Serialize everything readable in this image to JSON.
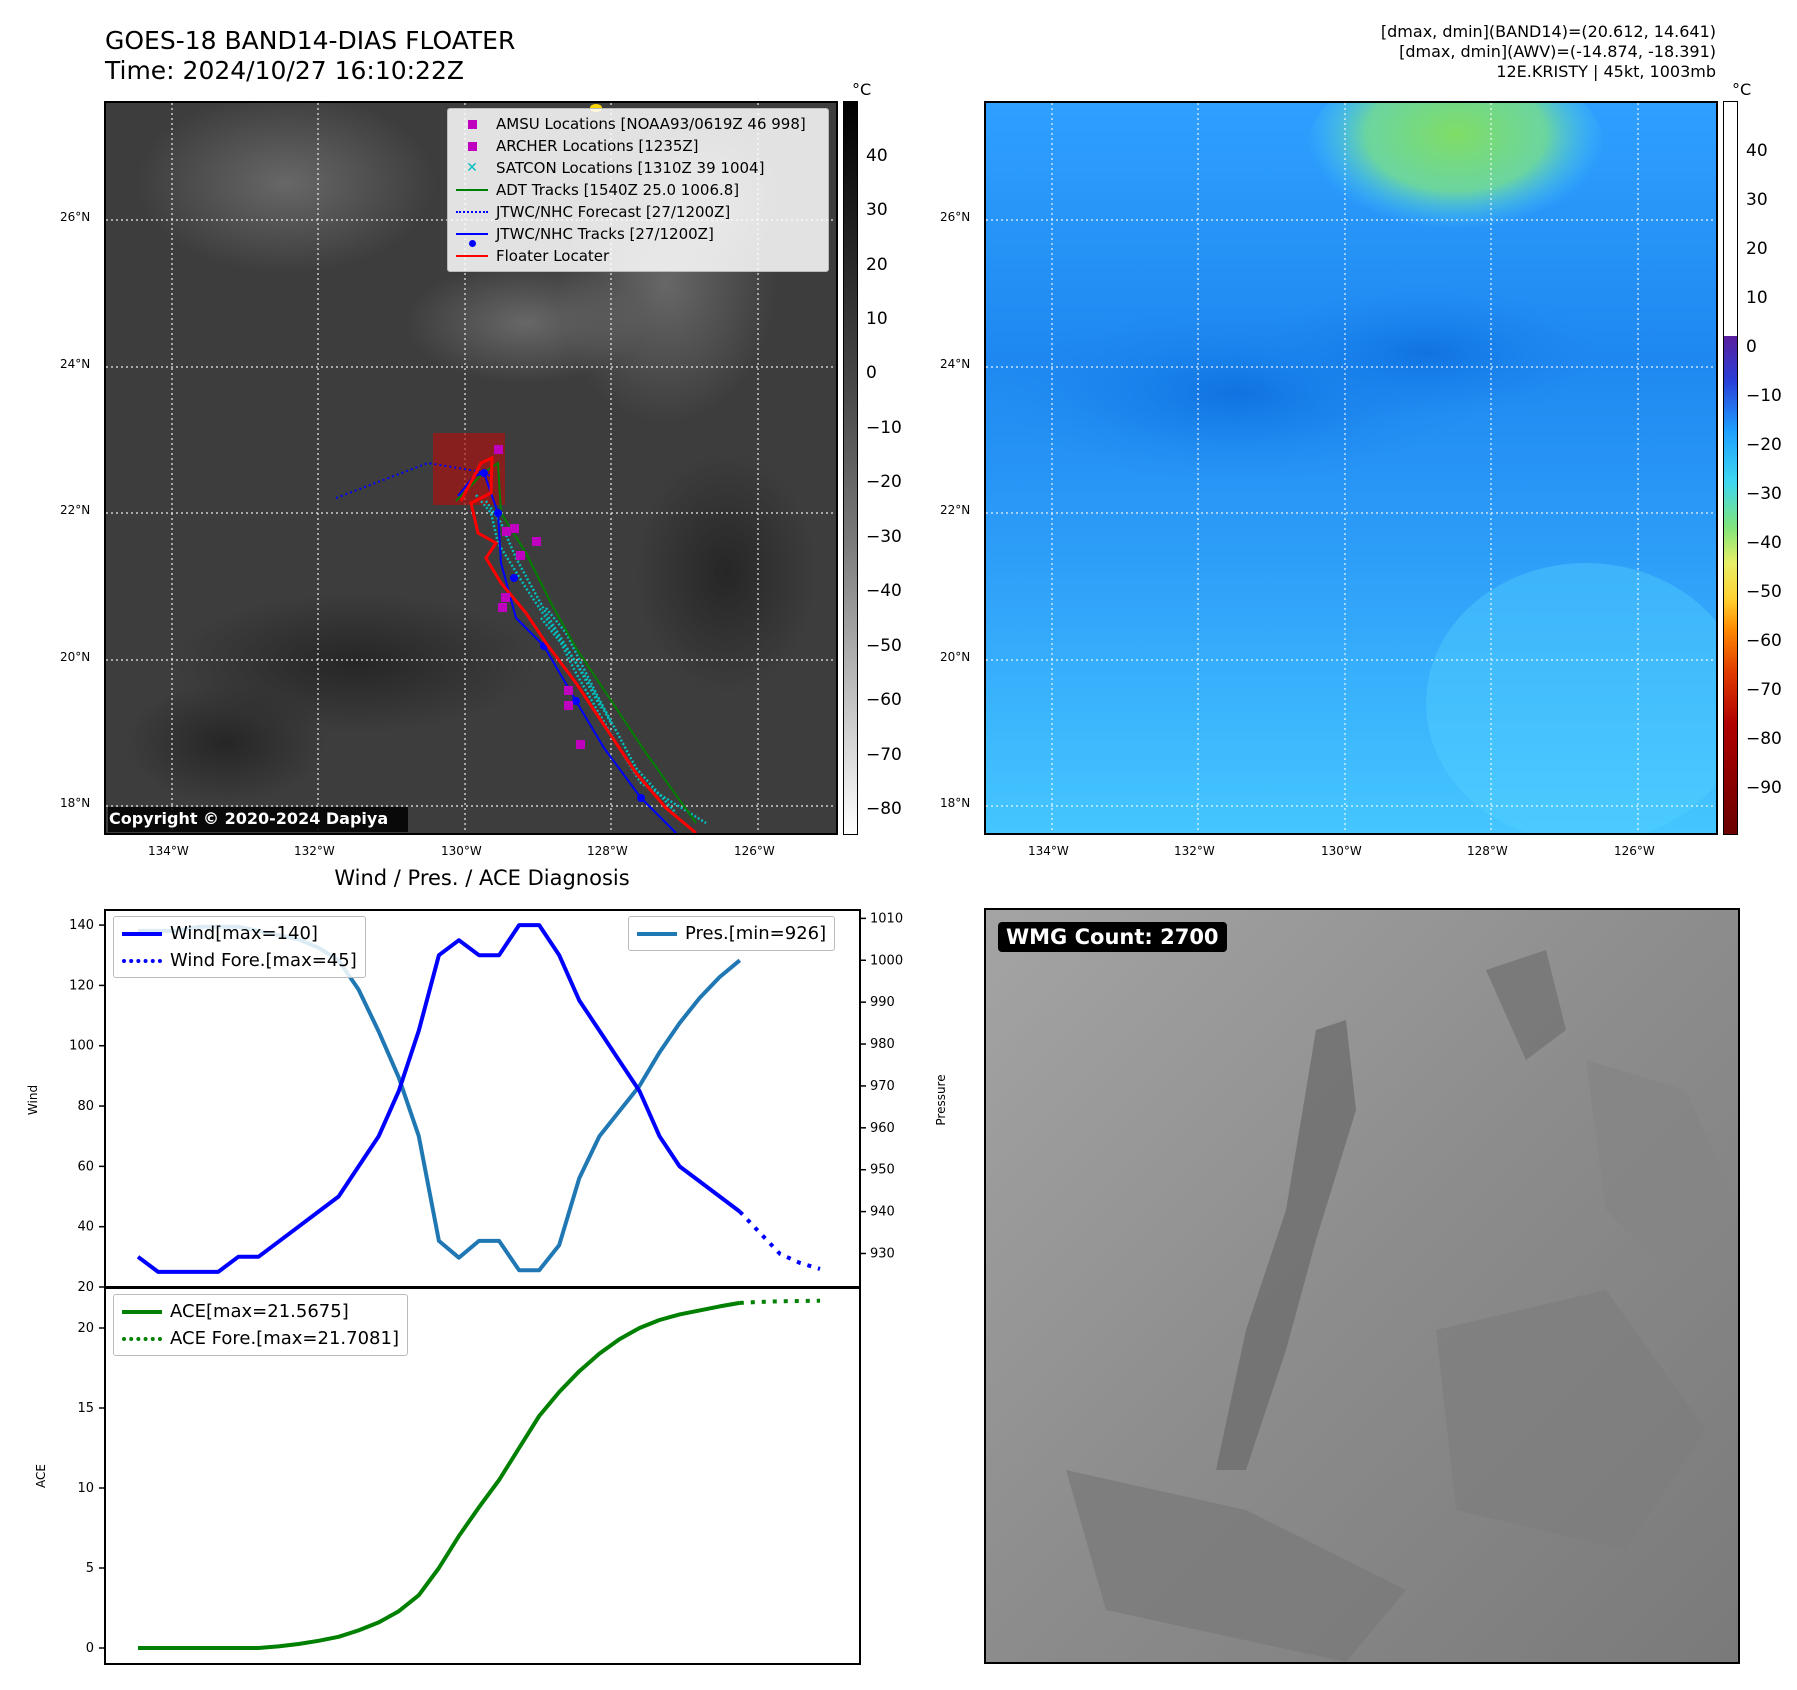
{
  "header": {
    "title_line1": "GOES-18 BAND14-DIAS FLOATER",
    "title_line2": "Time: 2024/10/27 16:10:22Z",
    "right_line1": "[dmax, dmin](BAND14)=(20.612, 14.641)",
    "right_line2": "[dmax, dmin](AWV)=(-14.874, -18.391)",
    "right_line3": "12E.KRISTY | 45kt, 1003mb"
  },
  "map": {
    "lon_labels": [
      "134°W",
      "132°W",
      "130°W",
      "128°W",
      "126°W"
    ],
    "lat_labels": [
      "26°N",
      "24°N",
      "22°N",
      "20°N",
      "18°N"
    ],
    "copyright": "Copyright © 2020-2024 Dapiya",
    "legend": [
      {
        "label": "AMSU Locations [NOAA93/0619Z 46 998]",
        "symbol": "square",
        "color": "#bf00bf"
      },
      {
        "label": "ARCHER Locations [1235Z]",
        "symbol": "square",
        "color": "#bf00bf"
      },
      {
        "label": "SATCON Locations [1310Z 39 1004]",
        "symbol": "x",
        "color": "#00bfbf"
      },
      {
        "label": "ADT Tracks [1540Z 25.0 1006.8]",
        "symbol": "line",
        "color": "#008000"
      },
      {
        "label": "JTWC/NHC Forecast [27/1200Z]",
        "symbol": "dotted",
        "color": "#0000ff"
      },
      {
        "label": "JTWC/NHC Tracks [27/1200Z]",
        "symbol": "line-dot",
        "color": "#0000ff"
      },
      {
        "label": "Floater Locater",
        "symbol": "line",
        "color": "#ff0000"
      }
    ]
  },
  "colorbar_left": {
    "unit": "°C",
    "ticks": [
      "40",
      "30",
      "20",
      "10",
      "0",
      "−10",
      "−20",
      "−30",
      "−40",
      "−50",
      "−60",
      "−70",
      "−80"
    ]
  },
  "colorbar_right": {
    "unit": "°C",
    "ticks": [
      "40",
      "30",
      "20",
      "10",
      "0",
      "−10",
      "−20",
      "−30",
      "−40",
      "−50",
      "−60",
      "−70",
      "−80",
      "−90"
    ]
  },
  "wmg": {
    "label": "WMG Count: 2700"
  },
  "chart_data": [
    {
      "type": "line",
      "title": "Wind / Pres. / ACE Diagnosis",
      "ylabel": "Wind",
      "ylabel_right": "Pressure",
      "ylim": [
        20,
        145
      ],
      "ylim_right": [
        922,
        1012
      ],
      "yticks": [
        20,
        40,
        60,
        80,
        100,
        120,
        140
      ],
      "yticks_right": [
        930,
        940,
        950,
        960,
        970,
        980,
        990,
        1000,
        1010
      ],
      "legend_left": [
        "Wind[max=140]",
        "Wind Fore.[max=45]"
      ],
      "legend_right": [
        "Pres.[min=926]"
      ],
      "series": [
        {
          "name": "Wind[max=140]",
          "color": "#0000ff",
          "style": "solid",
          "x": [
            0,
            1,
            2,
            3,
            4,
            5,
            6,
            7,
            8,
            9,
            10,
            11,
            12,
            13,
            14,
            15,
            16,
            17,
            18,
            19,
            20,
            21,
            22,
            23,
            24,
            25,
            26,
            27,
            28,
            29,
            30
          ],
          "values": [
            30,
            25,
            25,
            25,
            25,
            30,
            30,
            35,
            40,
            45,
            50,
            60,
            70,
            85,
            105,
            130,
            135,
            130,
            130,
            140,
            140,
            130,
            115,
            105,
            95,
            85,
            70,
            60,
            55,
            50,
            45
          ]
        },
        {
          "name": "Wind Fore.[max=45]",
          "color": "#0000ff",
          "style": "dotted",
          "x": [
            30,
            31,
            32,
            33,
            34
          ],
          "values": [
            45,
            38,
            31,
            28,
            26
          ]
        },
        {
          "name": "Pres.[min=926]",
          "color": "#1f77b4",
          "style": "solid",
          "axis": "right",
          "x": [
            0,
            1,
            2,
            3,
            4,
            5,
            6,
            7,
            8,
            9,
            10,
            11,
            12,
            13,
            14,
            15,
            16,
            17,
            18,
            19,
            20,
            21,
            22,
            23,
            24,
            25,
            26,
            27,
            28,
            29,
            30
          ],
          "values": [
            1007,
            1007,
            1007,
            1008,
            1008,
            1008,
            1007,
            1006,
            1005,
            1003,
            1000,
            993,
            983,
            972,
            958,
            933,
            929,
            933,
            933,
            926,
            926,
            932,
            948,
            958,
            964,
            970,
            978,
            985,
            991,
            996,
            1000
          ]
        }
      ]
    },
    {
      "type": "line",
      "ylabel": "ACE",
      "ylim": [
        -1,
        22.5
      ],
      "yticks": [
        0,
        5,
        10,
        15,
        20
      ],
      "legend": [
        "ACE[max=21.5675]",
        "ACE Fore.[max=21.7081]"
      ],
      "series": [
        {
          "name": "ACE[max=21.5675]",
          "color": "#008000",
          "style": "solid",
          "x": [
            0,
            1,
            2,
            3,
            4,
            5,
            6,
            7,
            8,
            9,
            10,
            11,
            12,
            13,
            14,
            15,
            16,
            17,
            18,
            19,
            20,
            21,
            22,
            23,
            24,
            25,
            26,
            27,
            28,
            29,
            30
          ],
          "values": [
            0,
            0,
            0,
            0,
            0,
            0,
            0,
            0.1,
            0.25,
            0.45,
            0.7,
            1.1,
            1.6,
            2.3,
            3.3,
            5,
            7,
            8.8,
            10.5,
            12.5,
            14.5,
            16,
            17.3,
            18.4,
            19.3,
            20,
            20.5,
            20.85,
            21.1,
            21.35,
            21.5675
          ]
        },
        {
          "name": "ACE Fore.[max=21.7081]",
          "color": "#008000",
          "style": "dotted",
          "x": [
            30,
            31,
            32,
            33,
            34
          ],
          "values": [
            21.5675,
            21.63,
            21.67,
            21.69,
            21.7081
          ]
        }
      ]
    }
  ]
}
